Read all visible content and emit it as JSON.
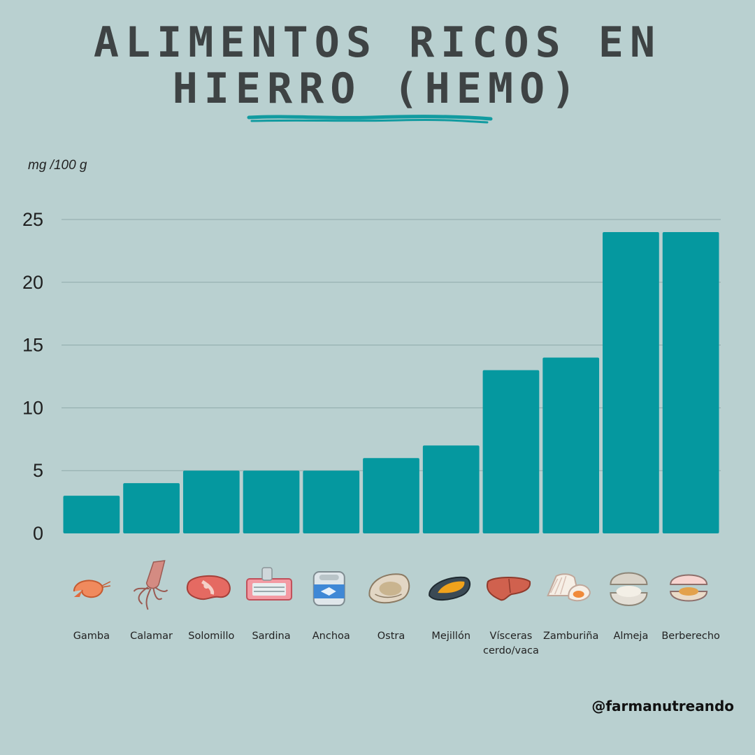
{
  "title_line1": "ALIMENTOS RICOS EN",
  "title_line2": "HIERRO (HEMO)",
  "handle": "@farmanutreando",
  "colors": {
    "background": "#b9d0d0",
    "bar": "#05989f",
    "grid": "#8fa9aa",
    "title": "#3e4344"
  },
  "chart_data": {
    "type": "bar",
    "ylabel": "mg /100 g",
    "categories": [
      "Gamba",
      "Calamar",
      "Solomillo",
      "Sardina",
      "Anchoa",
      "Ostra",
      "Mejillón",
      "Vísceras\ncerdo/vaca",
      "Zamburiña",
      "Almeja",
      "Berberecho"
    ],
    "values": [
      3,
      4,
      5,
      5,
      5,
      6,
      7,
      13,
      14,
      24,
      24
    ],
    "ylim": [
      0,
      25
    ],
    "yticks": [
      0,
      5,
      10,
      15,
      20,
      25
    ],
    "grid": true,
    "legend": "none"
  },
  "icons": [
    "shrimp-icon",
    "squid-icon",
    "steak-icon",
    "sardine-can-icon",
    "anchovy-can-icon",
    "oyster-icon",
    "mussel-icon",
    "liver-icon",
    "scallop-icon",
    "clam-icon",
    "cockle-icon"
  ]
}
